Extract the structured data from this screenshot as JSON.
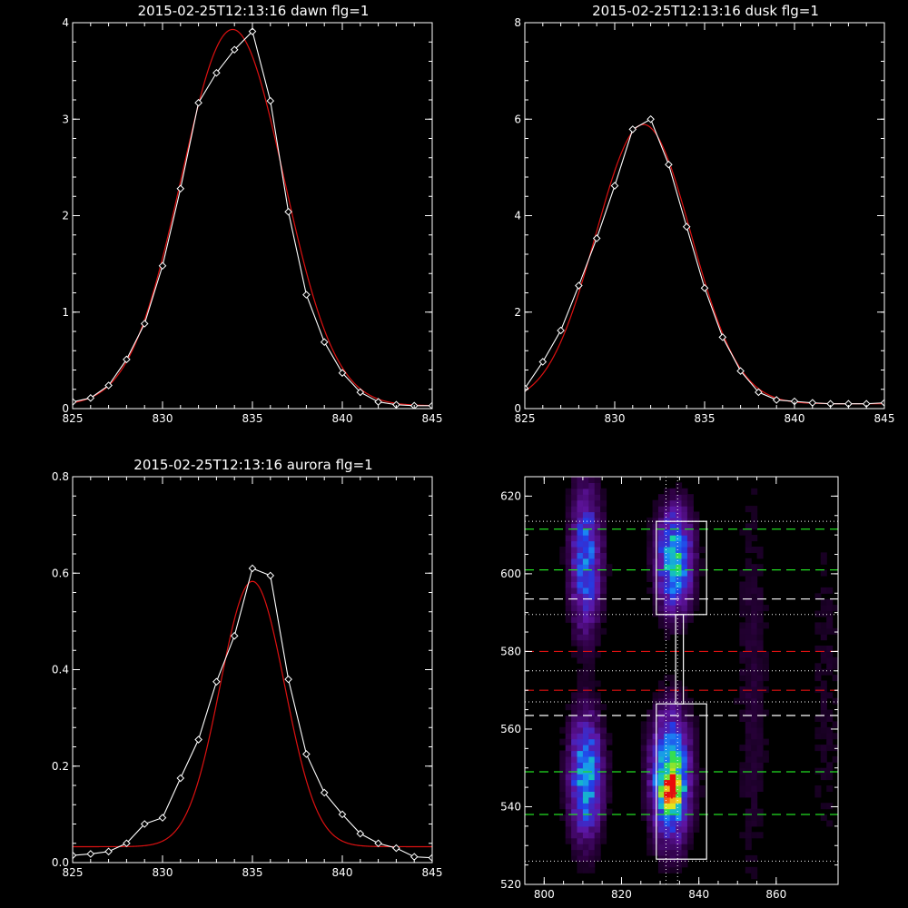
{
  "colors": {
    "background": "#000000",
    "axes": "#ffffff",
    "data_line": "#ffffff",
    "fit_line": "#dd1111",
    "green_dash": "#22dd22",
    "red_dash": "#dd1111",
    "white_dash": "#ffffff"
  },
  "chart_data": [
    {
      "id": "dawn",
      "type": "line",
      "title": "2015-02-25T12:13:16 dawn flg=1",
      "xlim": [
        825,
        845
      ],
      "ylim": [
        0,
        4
      ],
      "x_ticks": [
        "825",
        "830",
        "835",
        "840",
        "845"
      ],
      "y_ticks": [
        "0",
        "1",
        "2",
        "3",
        "4"
      ],
      "series": [
        {
          "role": "data",
          "marker": "diamond",
          "color": "#ffffff",
          "x": [
            825,
            826,
            827,
            828,
            829,
            830,
            831,
            832,
            833,
            834,
            835,
            836,
            837,
            838,
            839,
            840,
            841,
            842,
            843,
            844,
            845
          ],
          "y": [
            0.07,
            0.11,
            0.24,
            0.51,
            0.88,
            1.48,
            2.28,
            3.17,
            3.48,
            3.72,
            3.91,
            3.19,
            2.04,
            1.18,
            0.69,
            0.37,
            0.17,
            0.07,
            0.04,
            0.03,
            0.03
          ]
        },
        {
          "role": "gaussian-fit",
          "color": "#dd1111",
          "peak": 3.9,
          "center": 833.9,
          "sigma": 2.85,
          "offset": 0.03
        }
      ]
    },
    {
      "id": "dusk",
      "type": "line",
      "title": "2015-02-25T12:13:16 dusk flg=1",
      "xlim": [
        825,
        845
      ],
      "ylim": [
        0,
        8
      ],
      "x_ticks": [
        "825",
        "830",
        "835",
        "840",
        "845"
      ],
      "y_ticks": [
        "0",
        "2",
        "4",
        "6",
        "8"
      ],
      "series": [
        {
          "role": "data",
          "marker": "diamond",
          "color": "#ffffff",
          "x": [
            825,
            826,
            827,
            828,
            829,
            830,
            831,
            832,
            833,
            834,
            835,
            836,
            837,
            838,
            839,
            840,
            841,
            842,
            843,
            844,
            845
          ],
          "y": [
            0.42,
            0.97,
            1.62,
            2.55,
            3.53,
            4.62,
            5.79,
            6.0,
            5.06,
            3.77,
            2.5,
            1.48,
            0.78,
            0.34,
            0.18,
            0.15,
            0.12,
            0.1,
            0.1,
            0.1,
            0.12
          ]
        },
        {
          "role": "gaussian-fit",
          "color": "#dd1111",
          "peak": 5.79,
          "center": 831.6,
          "sigma": 2.65,
          "offset": 0.1
        }
      ]
    },
    {
      "id": "aurora",
      "type": "line",
      "title": "2015-02-25T12:13:16 aurora flg=1",
      "xlim": [
        825,
        845
      ],
      "ylim": [
        0,
        0.8
      ],
      "x_ticks": [
        "825",
        "830",
        "835",
        "840",
        "845"
      ],
      "y_ticks": [
        "0.0",
        "0.2",
        "0.4",
        "0.6",
        "0.8"
      ],
      "series": [
        {
          "role": "data",
          "marker": "diamond",
          "color": "#ffffff",
          "x": [
            825,
            826,
            827,
            828,
            829,
            830,
            831,
            832,
            833,
            834,
            835,
            836,
            837,
            838,
            839,
            840,
            841,
            842,
            843,
            844,
            845
          ],
          "y": [
            0.015,
            0.018,
            0.023,
            0.04,
            0.08,
            0.093,
            0.175,
            0.255,
            0.375,
            0.47,
            0.61,
            0.595,
            0.38,
            0.225,
            0.145,
            0.1,
            0.06,
            0.04,
            0.03,
            0.012,
            0.01
          ]
        },
        {
          "role": "gaussian-fit",
          "color": "#dd1111",
          "peak": 0.55,
          "center": 835.0,
          "sigma": 1.8,
          "offset": 0.033
        }
      ]
    },
    {
      "id": "image",
      "type": "heatmap",
      "title": "",
      "xlim": [
        795,
        876
      ],
      "ylim": [
        520,
        625
      ],
      "x_ticks": [
        "800",
        "820",
        "840",
        "860"
      ],
      "y_ticks": [
        "520",
        "540",
        "560",
        "580",
        "600",
        "620"
      ],
      "blobs": [
        {
          "x": 810,
          "y": 603,
          "sx": 2.8,
          "sy": 13,
          "amp": 0.45
        },
        {
          "x": 810,
          "y": 547,
          "sx": 3.0,
          "sy": 11,
          "amp": 0.55
        },
        {
          "x": 833,
          "y": 603,
          "sx": 3.2,
          "sy": 9,
          "amp": 0.6
        },
        {
          "x": 832,
          "y": 547,
          "sx": 3.5,
          "sy": 11,
          "amp": 0.7
        },
        {
          "x": 832,
          "y": 543,
          "sx": 1.8,
          "sy": 3,
          "amp": 0.55
        },
        {
          "x": 853,
          "y": 570,
          "sx": 3.5,
          "sy": 45,
          "amp": 0.08
        },
        {
          "x": 872,
          "y": 570,
          "sx": 3.5,
          "sy": 45,
          "amp": 0.06
        }
      ],
      "boxes": [
        {
          "x0": 829,
          "x1": 842,
          "y0": 589.5,
          "y1": 613.5
        },
        {
          "x0": 829,
          "x1": 842,
          "y0": 526.5,
          "y1": 566.5
        },
        {
          "x0": 834,
          "x1": 836,
          "y0": 566.5,
          "y1": 589.5
        }
      ],
      "v_dotted_x": [
        831.5,
        834.5
      ],
      "h_dotted_y": [
        613.5,
        589.5,
        575,
        567,
        526
      ],
      "h_dashed": [
        {
          "y": 611.5,
          "color": "#22dd22"
        },
        {
          "y": 601,
          "color": "#22dd22"
        },
        {
          "y": 593.5,
          "color": "#ffffff"
        },
        {
          "y": 580,
          "color": "#dd1111"
        },
        {
          "y": 570,
          "color": "#dd1111"
        },
        {
          "y": 563.5,
          "color": "#ffffff"
        },
        {
          "y": 549,
          "color": "#22dd22"
        },
        {
          "y": 538,
          "color": "#22dd22"
        }
      ],
      "cross_marker": {
        "x": 833,
        "y": 543.5,
        "color": "#dd1111"
      }
    }
  ]
}
